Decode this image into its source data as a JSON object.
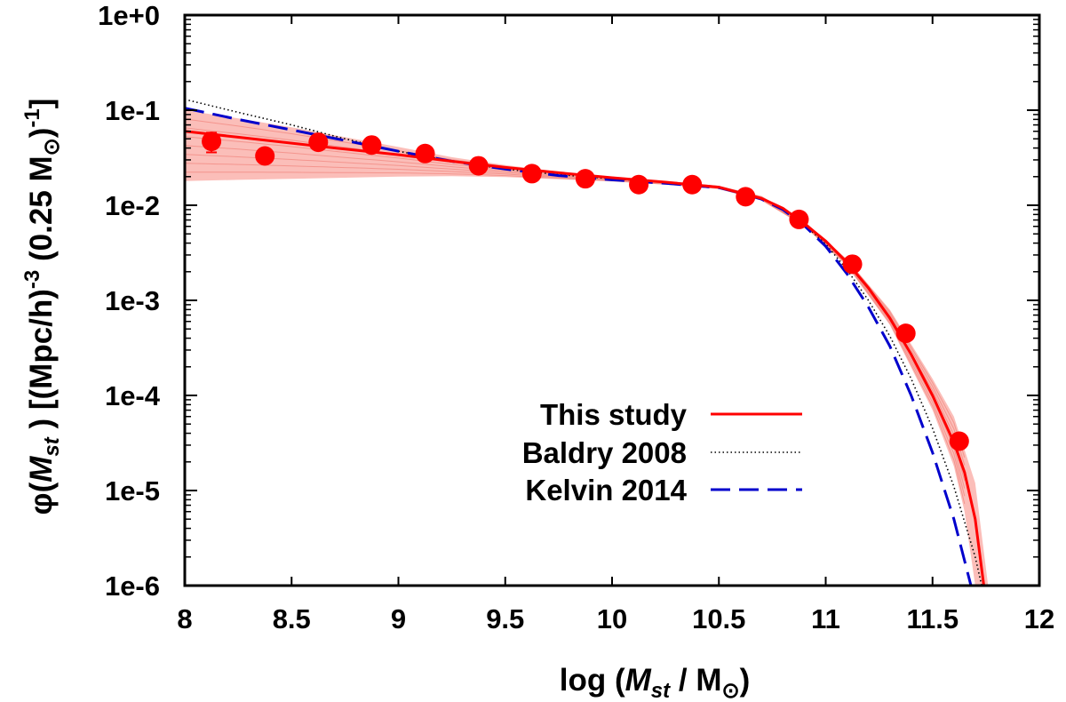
{
  "chart_data": {
    "type": "line",
    "x_range": [
      8,
      12
    ],
    "y_range": [
      1e-06,
      1
    ],
    "y_scale": "log",
    "x_ticks": [
      "8",
      "8.5",
      "9",
      "9.5",
      "10",
      "10.5",
      "11",
      "11.5",
      "12"
    ],
    "y_ticks": [
      "1e+0",
      "1e-1",
      "1e-2",
      "1e-3",
      "1e-4",
      "1e-5",
      "1e-6"
    ],
    "xlabel": {
      "pre": "log (",
      "var": "M",
      "sub": "st",
      "mid": " / M",
      "sun": "⊙",
      "post": ")"
    },
    "ylabel": {
      "phi": "φ(",
      "var": "M",
      "sub": "st",
      "mid": " ) [(Mpc/h)",
      "sup1": "-3",
      "mid2": " (0.25 M",
      "sun": "⊙",
      "mid3": ")",
      "sup2": "-1",
      "end": "]"
    },
    "colors": {
      "this_study": "#ff0000",
      "band": "#f9a8a2",
      "baldry": "#000000",
      "kelvin": "#0000cc"
    },
    "legend_position": "lower-right",
    "legend": [
      {
        "label": "This study",
        "style": "solid"
      },
      {
        "label": "Baldry 2008",
        "style": "dotted"
      },
      {
        "label": "Kelvin 2014",
        "style": "dashed"
      }
    ],
    "data_points": [
      {
        "x": 8.125,
        "y": 0.047,
        "err_lo": 0.036,
        "err_hi": 0.058
      },
      {
        "x": 8.375,
        "y": 0.033
      },
      {
        "x": 8.625,
        "y": 0.046
      },
      {
        "x": 8.875,
        "y": 0.043
      },
      {
        "x": 9.125,
        "y": 0.035
      },
      {
        "x": 9.375,
        "y": 0.026
      },
      {
        "x": 9.625,
        "y": 0.0215
      },
      {
        "x": 9.875,
        "y": 0.019
      },
      {
        "x": 10.125,
        "y": 0.0165
      },
      {
        "x": 10.375,
        "y": 0.0165
      },
      {
        "x": 10.625,
        "y": 0.0123
      },
      {
        "x": 10.875,
        "y": 0.0071
      },
      {
        "x": 11.125,
        "y": 0.0024
      },
      {
        "x": 11.375,
        "y": 0.00045
      },
      {
        "x": 11.625,
        "y": 3.3e-05
      }
    ],
    "this_study_curve": [
      [
        8.0,
        0.06
      ],
      [
        8.25,
        0.052
      ],
      [
        8.5,
        0.045
      ],
      [
        8.75,
        0.039
      ],
      [
        9.0,
        0.034
      ],
      [
        9.25,
        0.029
      ],
      [
        9.5,
        0.025
      ],
      [
        9.75,
        0.022
      ],
      [
        10.0,
        0.0195
      ],
      [
        10.25,
        0.0175
      ],
      [
        10.5,
        0.0155
      ],
      [
        10.6,
        0.0135
      ],
      [
        10.7,
        0.0118
      ],
      [
        10.8,
        0.0093
      ],
      [
        10.9,
        0.0064
      ],
      [
        11.0,
        0.0042
      ],
      [
        11.1,
        0.0025
      ],
      [
        11.2,
        0.00135
      ],
      [
        11.3,
        0.00065
      ],
      [
        11.4,
        0.00027
      ],
      [
        11.5,
        0.0001
      ],
      [
        11.6,
        3.2e-05
      ],
      [
        11.65,
        1.55e-05
      ],
      [
        11.7,
        5e-06
      ],
      [
        11.74,
        1e-06
      ]
    ],
    "band_upper": [
      [
        8.0,
        0.1
      ],
      [
        8.25,
        0.082
      ],
      [
        8.5,
        0.066
      ],
      [
        8.75,
        0.052
      ],
      [
        9.0,
        0.041
      ],
      [
        9.25,
        0.032
      ],
      [
        9.5,
        0.0265
      ],
      [
        9.75,
        0.0225
      ],
      [
        10.0,
        0.02
      ],
      [
        10.25,
        0.018
      ],
      [
        10.5,
        0.016
      ],
      [
        10.7,
        0.0125
      ],
      [
        10.9,
        0.0068
      ],
      [
        11.1,
        0.0027
      ],
      [
        11.3,
        0.0008
      ],
      [
        11.5,
        0.00015
      ],
      [
        11.6,
        6e-05
      ],
      [
        11.7,
        1.2e-05
      ],
      [
        11.76,
        1e-06
      ]
    ],
    "band_lower": [
      [
        8.0,
        0.018
      ],
      [
        8.25,
        0.0185
      ],
      [
        8.5,
        0.019
      ],
      [
        8.75,
        0.0195
      ],
      [
        9.0,
        0.02
      ],
      [
        9.25,
        0.0202
      ],
      [
        9.5,
        0.0198
      ],
      [
        9.75,
        0.0188
      ],
      [
        10.0,
        0.0178
      ],
      [
        10.25,
        0.0165
      ],
      [
        10.5,
        0.0148
      ],
      [
        10.7,
        0.0112
      ],
      [
        10.9,
        0.006
      ],
      [
        11.1,
        0.0023
      ],
      [
        11.3,
        0.00055
      ],
      [
        11.5,
        7e-05
      ],
      [
        11.6,
        1.8e-05
      ],
      [
        11.65,
        6e-06
      ],
      [
        11.7,
        1e-06
      ]
    ],
    "baldry_curve": [
      [
        8.0,
        0.13
      ],
      [
        8.25,
        0.095
      ],
      [
        8.5,
        0.07
      ],
      [
        8.75,
        0.05
      ],
      [
        9.0,
        0.037
      ],
      [
        9.25,
        0.029
      ],
      [
        9.5,
        0.024
      ],
      [
        9.75,
        0.021
      ],
      [
        10.0,
        0.019
      ],
      [
        10.25,
        0.0175
      ],
      [
        10.5,
        0.0155
      ],
      [
        10.6,
        0.0137
      ],
      [
        10.7,
        0.0118
      ],
      [
        10.8,
        0.0092
      ],
      [
        10.9,
        0.0063
      ],
      [
        11.0,
        0.0039
      ],
      [
        11.1,
        0.0021
      ],
      [
        11.2,
        0.001
      ],
      [
        11.3,
        0.00042
      ],
      [
        11.4,
        0.00015
      ],
      [
        11.5,
        4.5e-05
      ],
      [
        11.6,
        1.1e-05
      ],
      [
        11.7,
        2e-06
      ],
      [
        11.73,
        1e-06
      ]
    ],
    "kelvin_curve": [
      [
        8.0,
        0.105
      ],
      [
        8.25,
        0.08
      ],
      [
        8.5,
        0.062
      ],
      [
        8.75,
        0.048
      ],
      [
        9.0,
        0.037
      ],
      [
        9.25,
        0.029
      ],
      [
        9.5,
        0.024
      ],
      [
        9.75,
        0.0205
      ],
      [
        10.0,
        0.0185
      ],
      [
        10.25,
        0.017
      ],
      [
        10.5,
        0.0153
      ],
      [
        10.6,
        0.0135
      ],
      [
        10.7,
        0.0116
      ],
      [
        10.8,
        0.009
      ],
      [
        10.9,
        0.0061
      ],
      [
        11.0,
        0.0037
      ],
      [
        11.1,
        0.0019
      ],
      [
        11.2,
        0.00085
      ],
      [
        11.3,
        0.00033
      ],
      [
        11.4,
        0.0001
      ],
      [
        11.5,
        2.5e-05
      ],
      [
        11.6,
        5e-06
      ],
      [
        11.68,
        1e-06
      ]
    ]
  }
}
